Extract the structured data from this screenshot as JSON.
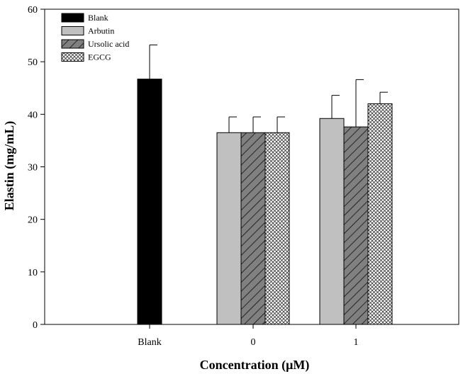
{
  "chart_data": {
    "type": "bar",
    "categories": [
      "Blank",
      "0",
      "1"
    ],
    "series": [
      {
        "name": "Blank",
        "values": [
          46.7,
          null,
          null
        ],
        "errors": [
          6.5,
          null,
          null
        ],
        "fill": "#000000",
        "pattern": "solid"
      },
      {
        "name": "Arbutin",
        "values": [
          null,
          36.5,
          39.2
        ],
        "errors": [
          null,
          3.0,
          4.4
        ],
        "fill": "#c0c0c0",
        "pattern": "solid"
      },
      {
        "name": "Ursolic acid",
        "values": [
          null,
          36.5,
          37.6
        ],
        "errors": [
          null,
          3.0,
          9.0
        ],
        "fill": "#808080",
        "pattern": "diagonal-hatch"
      },
      {
        "name": "EGCG",
        "values": [
          null,
          36.5,
          42.0
        ],
        "errors": [
          null,
          3.0,
          2.2
        ],
        "fill": "#ffffff",
        "pattern": "crosshatch"
      }
    ],
    "xlabel": "Concentration (μM)",
    "ylabel": "Elastin (mg/mL)",
    "ylim": [
      0,
      60
    ],
    "yticks": [
      0,
      10,
      20,
      30,
      40,
      50,
      60
    ],
    "grid": false,
    "legend_position": "top-left"
  }
}
